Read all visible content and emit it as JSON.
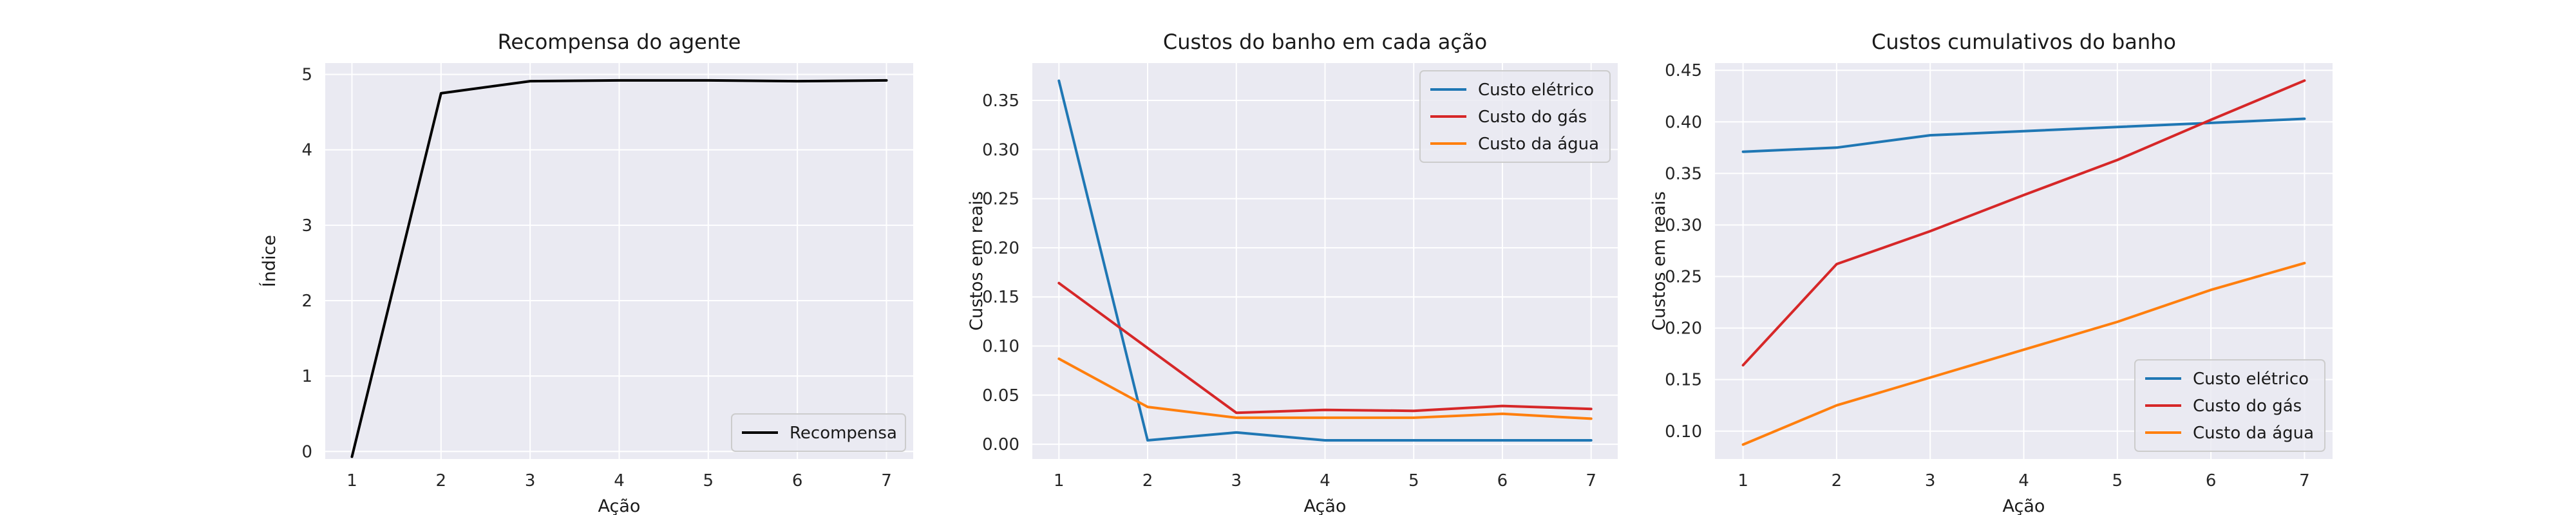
{
  "chart_data": [
    {
      "type": "line",
      "title": "Recompensa do agente",
      "xlabel": "Ação",
      "ylabel": "Índice",
      "x": [
        1,
        2,
        3,
        4,
        5,
        6,
        7
      ],
      "xlim": [
        0.7,
        7.3
      ],
      "ylim": [
        -0.1,
        5.15
      ],
      "yticks": [
        0,
        1,
        2,
        3,
        4,
        5
      ],
      "ytick_labels": [
        "0",
        "1",
        "2",
        "3",
        "4",
        "5"
      ],
      "grid": true,
      "legend_position": "lower-right",
      "series": [
        {
          "name": "Recompensa",
          "color": "#000000",
          "values": [
            -0.07,
            4.75,
            4.91,
            4.92,
            4.92,
            4.91,
            4.92
          ]
        }
      ]
    },
    {
      "type": "line",
      "title": "Custos do banho em cada ação",
      "xlabel": "Ação",
      "ylabel": "Custos em reais",
      "x": [
        1,
        2,
        3,
        4,
        5,
        6,
        7
      ],
      "xlim": [
        0.7,
        7.3
      ],
      "ylim": [
        -0.015,
        0.388
      ],
      "yticks": [
        0,
        0.05,
        0.1,
        0.15,
        0.2,
        0.25,
        0.3,
        0.35
      ],
      "ytick_labels": [
        "0.00",
        "0.05",
        "0.10",
        "0.15",
        "0.20",
        "0.25",
        "0.30",
        "0.35"
      ],
      "grid": true,
      "legend_position": "upper-right",
      "series": [
        {
          "name": "Custo elétrico",
          "color": "#1f77b4",
          "values": [
            0.37,
            0.004,
            0.012,
            0.004,
            0.004,
            0.004,
            0.004
          ]
        },
        {
          "name": "Custo do gás",
          "color": "#d62728",
          "values": [
            0.164,
            0.098,
            0.032,
            0.035,
            0.034,
            0.039,
            0.036
          ]
        },
        {
          "name": "Custo da água",
          "color": "#ff7f0e",
          "values": [
            0.087,
            0.038,
            0.027,
            0.027,
            0.027,
            0.031,
            0.026
          ]
        }
      ]
    },
    {
      "type": "line",
      "title": "Custos cumulativos do banho",
      "xlabel": "Ação",
      "ylabel": "Custos em reais",
      "x": [
        1,
        2,
        3,
        4,
        5,
        6,
        7
      ],
      "xlim": [
        0.7,
        7.3
      ],
      "ylim": [
        0.073,
        0.457
      ],
      "yticks": [
        0.1,
        0.15,
        0.2,
        0.25,
        0.3,
        0.35,
        0.4,
        0.45
      ],
      "ytick_labels": [
        "0.10",
        "0.15",
        "0.20",
        "0.25",
        "0.30",
        "0.35",
        "0.40",
        "0.45"
      ],
      "grid": true,
      "legend_position": "lower-right",
      "series": [
        {
          "name": "Custo elétrico",
          "color": "#1f77b4",
          "values": [
            0.371,
            0.375,
            0.387,
            0.391,
            0.395,
            0.399,
            0.403
          ]
        },
        {
          "name": "Custo do gás",
          "color": "#d62728",
          "values": [
            0.164,
            0.262,
            0.294,
            0.329,
            0.363,
            0.402,
            0.44
          ]
        },
        {
          "name": "Custo da água",
          "color": "#ff7f0e",
          "values": [
            0.087,
            0.125,
            0.152,
            0.179,
            0.206,
            0.237,
            0.263
          ]
        }
      ]
    }
  ]
}
